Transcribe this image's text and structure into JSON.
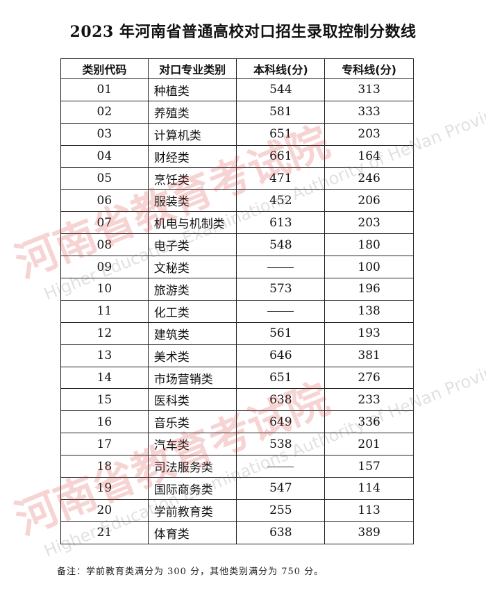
{
  "title": "2023 年河南省普通高校对口招生录取控制分数线",
  "table": {
    "headers": [
      "类别代码",
      "对口专业类别",
      "本科线(分)",
      "专科线(分)"
    ],
    "rows": [
      {
        "code": "01",
        "category": "种植类",
        "undergrad": "544",
        "junior": "313"
      },
      {
        "code": "02",
        "category": "养殖类",
        "undergrad": "581",
        "junior": "333"
      },
      {
        "code": "03",
        "category": "计算机类",
        "undergrad": "651",
        "junior": "203"
      },
      {
        "code": "04",
        "category": "财经类",
        "undergrad": "661",
        "junior": "164"
      },
      {
        "code": "05",
        "category": "烹饪类",
        "undergrad": "471",
        "junior": "246"
      },
      {
        "code": "06",
        "category": "服装类",
        "undergrad": "452",
        "junior": "206"
      },
      {
        "code": "07",
        "category": "机电与机制类",
        "undergrad": "613",
        "junior": "203"
      },
      {
        "code": "08",
        "category": "电子类",
        "undergrad": "548",
        "junior": "180"
      },
      {
        "code": "09",
        "category": "文秘类",
        "undergrad": "——",
        "junior": "100"
      },
      {
        "code": "10",
        "category": "旅游类",
        "undergrad": "573",
        "junior": "196"
      },
      {
        "code": "11",
        "category": "化工类",
        "undergrad": "——",
        "junior": "138"
      },
      {
        "code": "12",
        "category": "建筑类",
        "undergrad": "561",
        "junior": "193"
      },
      {
        "code": "13",
        "category": "美术类",
        "undergrad": "646",
        "junior": "381"
      },
      {
        "code": "14",
        "category": "市场营销类",
        "undergrad": "651",
        "junior": "276"
      },
      {
        "code": "15",
        "category": "医科类",
        "undergrad": "638",
        "junior": "233"
      },
      {
        "code": "16",
        "category": "音乐类",
        "undergrad": "649",
        "junior": "336"
      },
      {
        "code": "17",
        "category": "汽车类",
        "undergrad": "538",
        "junior": "201"
      },
      {
        "code": "18",
        "category": "司法服务类",
        "undergrad": "——",
        "junior": "157"
      },
      {
        "code": "19",
        "category": "国际商务类",
        "undergrad": "547",
        "junior": "114"
      },
      {
        "code": "20",
        "category": "学前教育类",
        "undergrad": "255",
        "junior": "113"
      },
      {
        "code": "21",
        "category": "体育类",
        "undergrad": "638",
        "junior": "389"
      }
    ]
  },
  "note": "备注：学前教育类满分为 300 分，其他类别满分为 750 分。",
  "watermark": {
    "cn": "河南省教育考试院",
    "en": "Higher Education Examinations Authority of HeNan Province",
    "color": "#dc3c3c"
  }
}
